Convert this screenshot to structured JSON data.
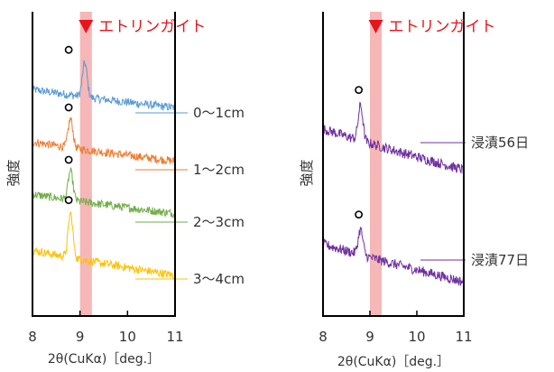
{
  "chart_data": [
    {
      "type": "line",
      "panel": "left",
      "xlabel": "2θ(CuKα)［deg.］",
      "ylabel": "強度",
      "xlim": [
        8,
        11
      ],
      "xticks": [
        "8",
        "9",
        "10",
        "11"
      ],
      "y_ticks_shown": false,
      "grid": false,
      "legend": "inline-right",
      "highlight_band": [
        9.0,
        9.25
      ],
      "highlight_label": "エトリンガイト",
      "highlight_color": "#f5b7b7",
      "marker_color": "#e8141c",
      "series": [
        {
          "name": "0～1cm",
          "color": "#5b9bd5",
          "peak_2theta": 9.1,
          "circle_2theta": 8.8,
          "offset": 3,
          "baseline_start": 0.72,
          "baseline_end": 0.42,
          "peak_height": 0.65
        },
        {
          "name": "1～2cm",
          "color": "#ed7d31",
          "peak_2theta": 8.8,
          "circle_2theta": 8.8,
          "offset": 2,
          "baseline_start": 0.72,
          "baseline_end": 0.4,
          "peak_height": 0.55
        },
        {
          "name": "2～3cm",
          "color": "#70ad47",
          "peak_2theta": 8.8,
          "circle_2theta": 8.8,
          "offset": 1,
          "baseline_start": 0.72,
          "baseline_end": 0.4,
          "peak_height": 0.55
        },
        {
          "name": "3～4cm",
          "color": "#ffc000",
          "peak_2theta": 8.8,
          "circle_2theta": 8.8,
          "offset": 0,
          "baseline_start": 0.65,
          "baseline_end": 0.22,
          "peak_height": 0.85
        }
      ]
    },
    {
      "type": "line",
      "panel": "right",
      "xlabel": "2θ(CuKα)［deg.］",
      "ylabel": "強度",
      "xlim": [
        8,
        11
      ],
      "xticks": [
        "8",
        "9",
        "10",
        "11"
      ],
      "y_ticks_shown": false,
      "grid": false,
      "legend": "inline-right",
      "highlight_band": [
        9.0,
        9.25
      ],
      "highlight_label": "エトリンガイト",
      "highlight_color": "#f5b7b7",
      "marker_color": "#e8141c",
      "series": [
        {
          "name": "浸漬56日",
          "color": "#7030a0",
          "peak_2theta": 8.8,
          "circle_2theta": 8.8,
          "offset": 1,
          "baseline_start": 0.85,
          "baseline_end": 0.25,
          "peak_height": 0.55
        },
        {
          "name": "浸漬77日",
          "color": "#7030a0",
          "peak_2theta": 8.8,
          "circle_2theta": 8.8,
          "offset": 0,
          "baseline_start": 0.8,
          "baseline_end": 0.25,
          "peak_height": 0.4
        }
      ]
    }
  ]
}
